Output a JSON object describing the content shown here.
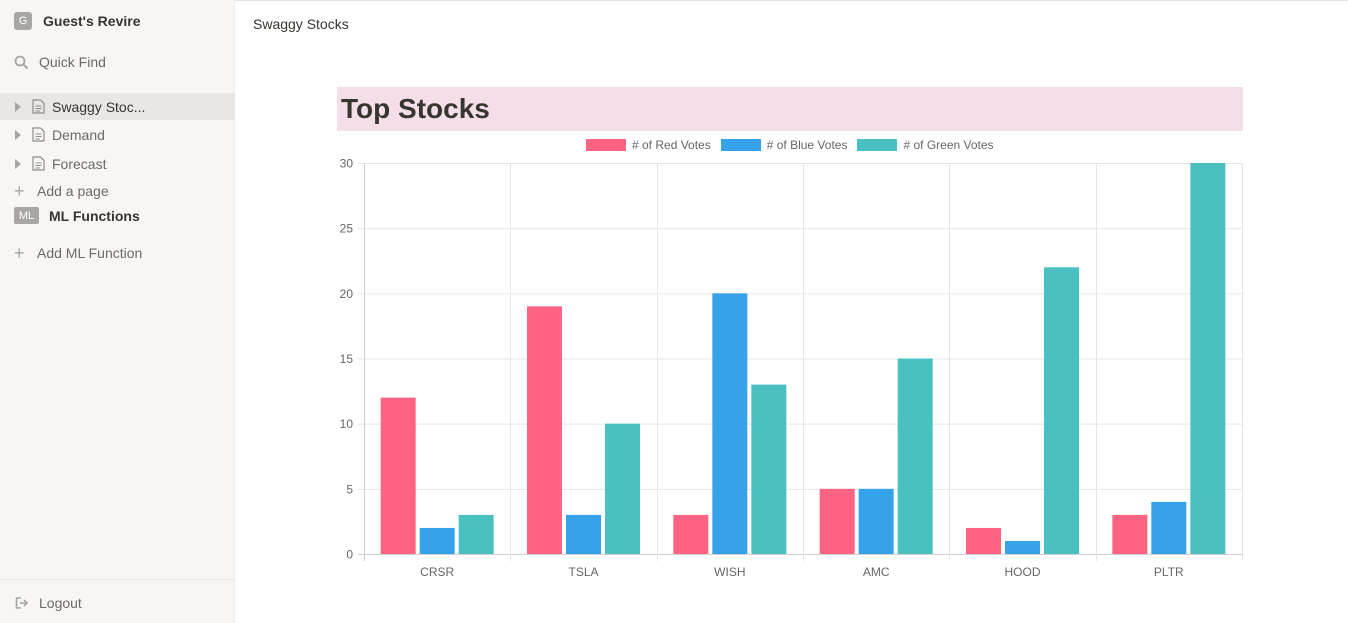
{
  "sidebar": {
    "workspace": {
      "badge": "G",
      "name": "Guest's Revire"
    },
    "quick_find": "Quick Find",
    "pages": [
      {
        "label": "Swaggy Stoc..."
      },
      {
        "label": "Demand"
      },
      {
        "label": "Forecast"
      }
    ],
    "add_page": "Add a page",
    "ml": {
      "badge": "ML",
      "label": "ML Functions"
    },
    "add_ml": "Add ML Function",
    "logout": "Logout"
  },
  "main": {
    "breadcrumb": "Swaggy Stocks",
    "title": "Top Stocks"
  },
  "chart_data": {
    "type": "bar",
    "categories": [
      "CRSR",
      "TSLA",
      "WISH",
      "AMC",
      "HOOD",
      "PLTR"
    ],
    "series": [
      {
        "name": "# of Red Votes",
        "color": "#ff6384",
        "values": [
          12,
          19,
          3,
          5,
          2,
          3
        ]
      },
      {
        "name": "# of Blue Votes",
        "color": "#36a2eb",
        "values": [
          2,
          3,
          20,
          5,
          1,
          4
        ]
      },
      {
        "name": "# of Green Votes",
        "color": "#4bc0c0",
        "values": [
          3,
          10,
          13,
          15,
          22,
          30
        ]
      }
    ],
    "ylim": [
      0,
      30
    ],
    "yticks": [
      0,
      5,
      10,
      15,
      20,
      25,
      30
    ],
    "grid": true,
    "legend": "top-center"
  }
}
